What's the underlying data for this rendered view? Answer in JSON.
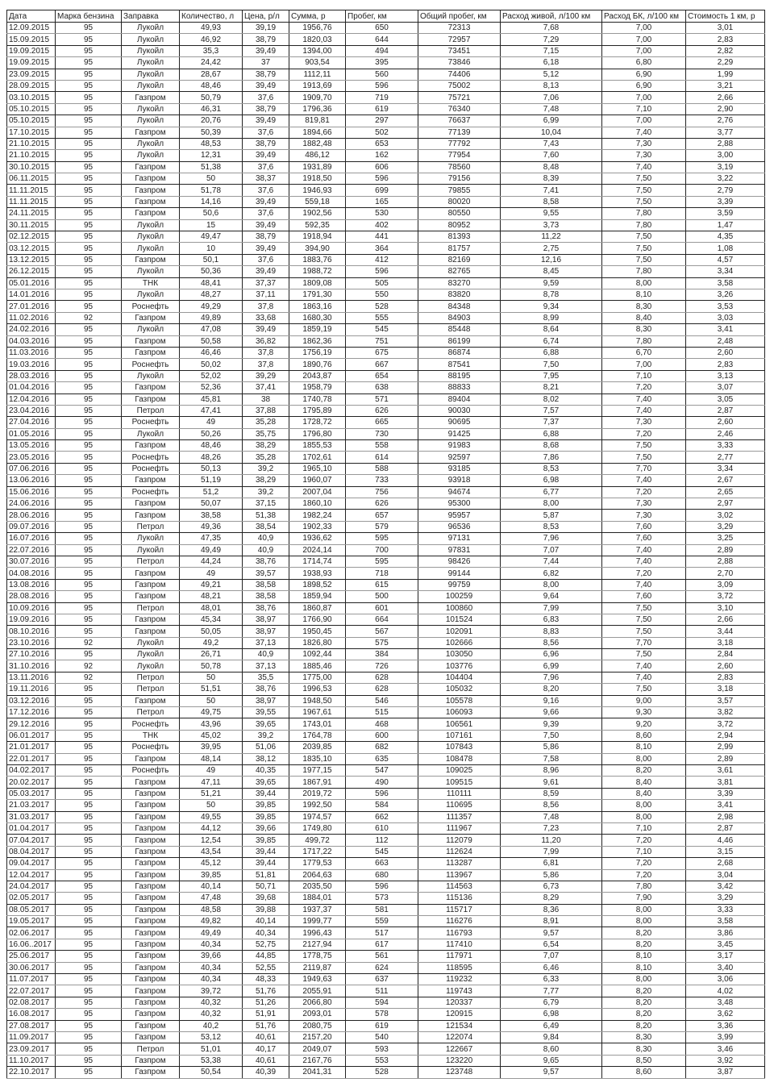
{
  "headers": [
    "Дата",
    "Марка бензина",
    "Заправка",
    "Количество, л",
    "Цена, р/л",
    "Сумма, р",
    "Пробег, км",
    "Общий пробег, км",
    "Расход живой, л/100 км",
    "Расход БК, л/100 км",
    "Стоимость 1 км, р"
  ],
  "rows": [
    [
      "12.09.2015",
      "95",
      "Лукойл",
      "49,93",
      "39,19",
      "1956,76",
      "650",
      "72313",
      "7,68",
      "7,00",
      "3,01"
    ],
    [
      "15.09.2015",
      "95",
      "Лукойл",
      "46,92",
      "38,79",
      "1820,03",
      "644",
      "72957",
      "7,29",
      "7,00",
      "2,83"
    ],
    [
      "19.09.2015",
      "95",
      "Лукойл",
      "35,3",
      "39,49",
      "1394,00",
      "494",
      "73451",
      "7,15",
      "7,00",
      "2,82"
    ],
    [
      "19.09.2015",
      "95",
      "Лукойл",
      "24,42",
      "37",
      "903,54",
      "395",
      "73846",
      "6,18",
      "6,80",
      "2,29"
    ],
    [
      "23.09.2015",
      "95",
      "Лукойл",
      "28,67",
      "38,79",
      "1112,11",
      "560",
      "74406",
      "5,12",
      "6,90",
      "1,99"
    ],
    [
      "28.09.2015",
      "95",
      "Лукойл",
      "48,46",
      "39,49",
      "1913,69",
      "596",
      "75002",
      "8,13",
      "6,90",
      "3,21"
    ],
    [
      "03.10.2015",
      "95",
      "Газпром",
      "50,79",
      "37,6",
      "1909,70",
      "719",
      "75721",
      "7,06",
      "7,00",
      "2,66"
    ],
    [
      "05.10.2015",
      "95",
      "Лукойл",
      "46,31",
      "38,79",
      "1796,36",
      "619",
      "76340",
      "7,48",
      "7,10",
      "2,90"
    ],
    [
      "05.10.2015",
      "95",
      "Лукойл",
      "20,76",
      "39,49",
      "819,81",
      "297",
      "76637",
      "6,99",
      "7,00",
      "2,76"
    ],
    [
      "17.10.2015",
      "95",
      "Газпром",
      "50,39",
      "37,6",
      "1894,66",
      "502",
      "77139",
      "10,04",
      "7,40",
      "3,77"
    ],
    [
      "21.10.2015",
      "95",
      "Лукойл",
      "48,53",
      "38,79",
      "1882,48",
      "653",
      "77792",
      "7,43",
      "7,30",
      "2,88"
    ],
    [
      "21.10.2015",
      "95",
      "Лукойл",
      "12,31",
      "39,49",
      "486,12",
      "162",
      "77954",
      "7,60",
      "7,30",
      "3,00"
    ],
    [
      "30.10.2015",
      "95",
      "Газпром",
      "51,38",
      "37,6",
      "1931,89",
      "606",
      "78560",
      "8,48",
      "7,40",
      "3,19"
    ],
    [
      "06.11.2015",
      "95",
      "Газпром",
      "50",
      "38,37",
      "1918,50",
      "596",
      "79156",
      "8,39",
      "7,50",
      "3,22"
    ],
    [
      "11.11.2015",
      "95",
      "Газпром",
      "51,78",
      "37,6",
      "1946,93",
      "699",
      "79855",
      "7,41",
      "7,50",
      "2,79"
    ],
    [
      "11.11.2015",
      "95",
      "Газпром",
      "14,16",
      "39,49",
      "559,18",
      "165",
      "80020",
      "8,58",
      "7,50",
      "3,39"
    ],
    [
      "24.11.2015",
      "95",
      "Газпром",
      "50,6",
      "37,6",
      "1902,56",
      "530",
      "80550",
      "9,55",
      "7,80",
      "3,59"
    ],
    [
      "30.11.2015",
      "95",
      "Лукойл",
      "15",
      "39,49",
      "592,35",
      "402",
      "80952",
      "3,73",
      "7,80",
      "1,47"
    ],
    [
      "02.12.2015",
      "95",
      "Лукойл",
      "49,47",
      "38,79",
      "1918,94",
      "441",
      "81393",
      "11,22",
      "7,50",
      "4,35"
    ],
    [
      "03.12.2015",
      "95",
      "Лукойл",
      "10",
      "39,49",
      "394,90",
      "364",
      "81757",
      "2,75",
      "7,50",
      "1,08"
    ],
    [
      "13.12.2015",
      "95",
      "Газпром",
      "50,1",
      "37,6",
      "1883,76",
      "412",
      "82169",
      "12,16",
      "7,50",
      "4,57"
    ],
    [
      "26.12.2015",
      "95",
      "Лукойл",
      "50,36",
      "39,49",
      "1988,72",
      "596",
      "82765",
      "8,45",
      "7,80",
      "3,34"
    ],
    [
      "05.01.2016",
      "95",
      "ТНК",
      "48,41",
      "37,37",
      "1809,08",
      "505",
      "83270",
      "9,59",
      "8,00",
      "3,58"
    ],
    [
      "14.01.2016",
      "95",
      "Лукойл",
      "48,27",
      "37,11",
      "1791,30",
      "550",
      "83820",
      "8,78",
      "8,10",
      "3,26"
    ],
    [
      "27.01.2016",
      "95",
      "Роснефть",
      "49,29",
      "37,8",
      "1863,16",
      "528",
      "84348",
      "9,34",
      "8,30",
      "3,53"
    ],
    [
      "11.02.2016",
      "92",
      "Газпром",
      "49,89",
      "33,68",
      "1680,30",
      "555",
      "84903",
      "8,99",
      "8,40",
      "3,03"
    ],
    [
      "24.02.2016",
      "95",
      "Лукойл",
      "47,08",
      "39,49",
      "1859,19",
      "545",
      "85448",
      "8,64",
      "8,30",
      "3,41"
    ],
    [
      "04.03.2016",
      "95",
      "Газпром",
      "50,58",
      "36,82",
      "1862,36",
      "751",
      "86199",
      "6,74",
      "7,80",
      "2,48"
    ],
    [
      "11.03.2016",
      "95",
      "Газпром",
      "46,46",
      "37,8",
      "1756,19",
      "675",
      "86874",
      "6,88",
      "6,70",
      "2,60"
    ],
    [
      "19.03.2016",
      "95",
      "Роснефть",
      "50,02",
      "37,8",
      "1890,76",
      "667",
      "87541",
      "7,50",
      "7,00",
      "2,83"
    ],
    [
      "28.03.2016",
      "95",
      "Лукойл",
      "52,02",
      "39,29",
      "2043,87",
      "654",
      "88195",
      "7,95",
      "7,10",
      "3,13"
    ],
    [
      "01.04.2016",
      "95",
      "Газпром",
      "52,36",
      "37,41",
      "1958,79",
      "638",
      "88833",
      "8,21",
      "7,20",
      "3,07"
    ],
    [
      "12.04.2016",
      "95",
      "Газпром",
      "45,81",
      "38",
      "1740,78",
      "571",
      "89404",
      "8,02",
      "7,40",
      "3,05"
    ],
    [
      "23.04.2016",
      "95",
      "Петрол",
      "47,41",
      "37,88",
      "1795,89",
      "626",
      "90030",
      "7,57",
      "7,40",
      "2,87"
    ],
    [
      "27.04.2016",
      "95",
      "Роснефть",
      "49",
      "35,28",
      "1728,72",
      "665",
      "90695",
      "7,37",
      "7,30",
      "2,60"
    ],
    [
      "01.05.2016",
      "95",
      "Лукойл",
      "50,26",
      "35,75",
      "1796,80",
      "730",
      "91425",
      "6,88",
      "7,20",
      "2,46"
    ],
    [
      "13.05.2016",
      "95",
      "Газпром",
      "48,46",
      "38,29",
      "1855,53",
      "558",
      "91983",
      "8,68",
      "7,50",
      "3,33"
    ],
    [
      "23.05.2016",
      "95",
      "Роснефть",
      "48,26",
      "35,28",
      "1702,61",
      "614",
      "92597",
      "7,86",
      "7,50",
      "2,77"
    ],
    [
      "07.06.2016",
      "95",
      "Роснефть",
      "50,13",
      "39,2",
      "1965,10",
      "588",
      "93185",
      "8,53",
      "7,70",
      "3,34"
    ],
    [
      "13.06.2016",
      "95",
      "Газпром",
      "51,19",
      "38,29",
      "1960,07",
      "733",
      "93918",
      "6,98",
      "7,40",
      "2,67"
    ],
    [
      "15.06.2016",
      "95",
      "Роснефть",
      "51,2",
      "39,2",
      "2007,04",
      "756",
      "94674",
      "6,77",
      "7,20",
      "2,65"
    ],
    [
      "24.06.2016",
      "95",
      "Газпром",
      "50,07",
      "37,15",
      "1860,10",
      "626",
      "95300",
      "8,00",
      "7,30",
      "2,97"
    ],
    [
      "28.06.2016",
      "95",
      "Газпром",
      "38,58",
      "51,38",
      "1982,24",
      "657",
      "95957",
      "5,87",
      "7,30",
      "3,02"
    ],
    [
      "09.07.2016",
      "95",
      "Петрол",
      "49,36",
      "38,54",
      "1902,33",
      "579",
      "96536",
      "8,53",
      "7,60",
      "3,29"
    ],
    [
      "16.07.2016",
      "95",
      "Лукойл",
      "47,35",
      "40,9",
      "1936,62",
      "595",
      "97131",
      "7,96",
      "7,60",
      "3,25"
    ],
    [
      "22.07.2016",
      "95",
      "Лукойл",
      "49,49",
      "40,9",
      "2024,14",
      "700",
      "97831",
      "7,07",
      "7,40",
      "2,89"
    ],
    [
      "30.07.2016",
      "95",
      "Петрол",
      "44,24",
      "38,76",
      "1714,74",
      "595",
      "98426",
      "7,44",
      "7,40",
      "2,88"
    ],
    [
      "04.08.2016",
      "95",
      "Газпром",
      "49",
      "39,57",
      "1938,93",
      "718",
      "99144",
      "6,82",
      "7,20",
      "2,70"
    ],
    [
      "13.08.2016",
      "95",
      "Газпром",
      "49,21",
      "38,58",
      "1898,52",
      "615",
      "99759",
      "8,00",
      "7,40",
      "3,09"
    ],
    [
      "28.08.2016",
      "95",
      "Газпром",
      "48,21",
      "38,58",
      "1859,94",
      "500",
      "100259",
      "9,64",
      "7,60",
      "3,72"
    ],
    [
      "10.09.2016",
      "95",
      "Петрол",
      "48,01",
      "38,76",
      "1860,87",
      "601",
      "100860",
      "7,99",
      "7,50",
      "3,10"
    ],
    [
      "19.09.2016",
      "95",
      "Газпром",
      "45,34",
      "38,97",
      "1766,90",
      "664",
      "101524",
      "6,83",
      "7,50",
      "2,66"
    ],
    [
      "08.10.2016",
      "95",
      "Газпром",
      "50,05",
      "38,97",
      "1950,45",
      "567",
      "102091",
      "8,83",
      "7,50",
      "3,44"
    ],
    [
      "23.10.2016",
      "92",
      "Лукойл",
      "49,2",
      "37,13",
      "1826,80",
      "575",
      "102666",
      "8,56",
      "7,70",
      "3,18"
    ],
    [
      "27.10.2016",
      "95",
      "Лукойл",
      "26,71",
      "40,9",
      "1092,44",
      "384",
      "103050",
      "6,96",
      "7,50",
      "2,84"
    ],
    [
      "31.10.2016",
      "92",
      "Лукойл",
      "50,78",
      "37,13",
      "1885,46",
      "726",
      "103776",
      "6,99",
      "7,40",
      "2,60"
    ],
    [
      "13.11.2016",
      "92",
      "Петрол",
      "50",
      "35,5",
      "1775,00",
      "628",
      "104404",
      "7,96",
      "7,40",
      "2,83"
    ],
    [
      "19.11.2016",
      "95",
      "Петрол",
      "51,51",
      "38,76",
      "1996,53",
      "628",
      "105032",
      "8,20",
      "7,50",
      "3,18"
    ],
    [
      "03.12.2016",
      "95",
      "Газпром",
      "50",
      "38,97",
      "1948,50",
      "546",
      "105578",
      "9,16",
      "9,00",
      "3,57"
    ],
    [
      "17.12.2016",
      "95",
      "Петрол",
      "49,75",
      "39,55",
      "1967,61",
      "515",
      "106093",
      "9,66",
      "9,30",
      "3,82"
    ],
    [
      "29.12.2016",
      "95",
      "Роснефть",
      "43,96",
      "39,65",
      "1743,01",
      "468",
      "106561",
      "9,39",
      "9,20",
      "3,72"
    ],
    [
      "06.01.2017",
      "95",
      "ТНК",
      "45,02",
      "39,2",
      "1764,78",
      "600",
      "107161",
      "7,50",
      "8,60",
      "2,94"
    ],
    [
      "21.01.2017",
      "95",
      "Роснефть",
      "39,95",
      "51,06",
      "2039,85",
      "682",
      "107843",
      "5,86",
      "8,10",
      "2,99"
    ],
    [
      "22.01.2017",
      "95",
      "Газпром",
      "48,14",
      "38,12",
      "1835,10",
      "635",
      "108478",
      "7,58",
      "8,00",
      "2,89"
    ],
    [
      "04.02.2017",
      "95",
      "Роснефть",
      "49",
      "40,35",
      "1977,15",
      "547",
      "109025",
      "8,96",
      "8,20",
      "3,61"
    ],
    [
      "20.02.2017",
      "95",
      "Газпром",
      "47,11",
      "39,65",
      "1867,91",
      "490",
      "109515",
      "9,61",
      "8,40",
      "3,81"
    ],
    [
      "05.03.2017",
      "95",
      "Газпром",
      "51,21",
      "39,44",
      "2019,72",
      "596",
      "110111",
      "8,59",
      "8,40",
      "3,39"
    ],
    [
      "21.03.2017",
      "95",
      "Газпром",
      "50",
      "39,85",
      "1992,50",
      "584",
      "110695",
      "8,56",
      "8,00",
      "3,41"
    ],
    [
      "31.03.2017",
      "95",
      "Газпром",
      "49,55",
      "39,85",
      "1974,57",
      "662",
      "111357",
      "7,48",
      "8,00",
      "2,98"
    ],
    [
      "01.04.2017",
      "95",
      "Газпром",
      "44,12",
      "39,66",
      "1749,80",
      "610",
      "111967",
      "7,23",
      "7,10",
      "2,87"
    ],
    [
      "07.04.2017",
      "95",
      "Газпром",
      "12,54",
      "39,85",
      "499,72",
      "112",
      "112079",
      "11,20",
      "7,20",
      "4,46"
    ],
    [
      "08.04.2017",
      "95",
      "Газпром",
      "43,54",
      "39,44",
      "1717,22",
      "545",
      "112624",
      "7,99",
      "7,10",
      "3,15"
    ],
    [
      "09.04.2017",
      "95",
      "Газпром",
      "45,12",
      "39,44",
      "1779,53",
      "663",
      "113287",
      "6,81",
      "7,20",
      "2,68"
    ],
    [
      "12.04.2017",
      "95",
      "Газпром",
      "39,85",
      "51,81",
      "2064,63",
      "680",
      "113967",
      "5,86",
      "7,20",
      "3,04"
    ],
    [
      "24.04.2017",
      "95",
      "Газпром",
      "40,14",
      "50,71",
      "2035,50",
      "596",
      "114563",
      "6,73",
      "7,80",
      "3,42"
    ],
    [
      "02.05.2017",
      "95",
      "Газпром",
      "47,48",
      "39,68",
      "1884,01",
      "573",
      "115136",
      "8,29",
      "7,90",
      "3,29"
    ],
    [
      "08.05.2017",
      "95",
      "Газпром",
      "48,58",
      "39,88",
      "1937,37",
      "581",
      "115717",
      "8,36",
      "8,00",
      "3,33"
    ],
    [
      "19.05.2017",
      "95",
      "Газпром",
      "49,82",
      "40,14",
      "1999,77",
      "559",
      "116276",
      "8,91",
      "8,00",
      "3,58"
    ],
    [
      "02.06.2017",
      "95",
      "Газпром",
      "49,49",
      "40,34",
      "1996,43",
      "517",
      "116793",
      "9,57",
      "8,20",
      "3,86"
    ],
    [
      "16.06..2017",
      "95",
      "Газпром",
      "40,34",
      "52,75",
      "2127,94",
      "617",
      "117410",
      "6,54",
      "8,20",
      "3,45"
    ],
    [
      "25.06.2017",
      "95",
      "Газпром",
      "39,66",
      "44,85",
      "1778,75",
      "561",
      "117971",
      "7,07",
      "8,10",
      "3,17"
    ],
    [
      "30.06.2017",
      "95",
      "Газпром",
      "40,34",
      "52,55",
      "2119,87",
      "624",
      "118595",
      "6,46",
      "8,10",
      "3,40"
    ],
    [
      "11.07.2017",
      "95",
      "Газпром",
      "40,34",
      "48,33",
      "1949,63",
      "637",
      "119232",
      "6,33",
      "8,00",
      "3,06"
    ],
    [
      "22.07.2017",
      "95",
      "Газпром",
      "39,72",
      "51,76",
      "2055,91",
      "511",
      "119743",
      "7,77",
      "8,20",
      "4,02"
    ],
    [
      "02.08.2017",
      "95",
      "Газпром",
      "40,32",
      "51,26",
      "2066,80",
      "594",
      "120337",
      "6,79",
      "8,20",
      "3,48"
    ],
    [
      "16.08.2017",
      "95",
      "Газпром",
      "40,32",
      "51,91",
      "2093,01",
      "578",
      "120915",
      "6,98",
      "8,20",
      "3,62"
    ],
    [
      "27.08.2017",
      "95",
      "Газпром",
      "40,2",
      "51,76",
      "2080,75",
      "619",
      "121534",
      "6,49",
      "8,20",
      "3,36"
    ],
    [
      "11.09.2017",
      "95",
      "Газпром",
      "53,12",
      "40,61",
      "2157,20",
      "540",
      "122074",
      "9,84",
      "8,30",
      "3,99"
    ],
    [
      "23.09.2017",
      "95",
      "Петрол",
      "51,01",
      "40,17",
      "2049,07",
      "593",
      "122667",
      "8,60",
      "8,30",
      "3,46"
    ],
    [
      "11.10.2017",
      "95",
      "Газпром",
      "53,38",
      "40,61",
      "2167,76",
      "553",
      "123220",
      "9,65",
      "8,50",
      "3,92"
    ],
    [
      "22.10.2017",
      "95",
      "Газпром",
      "50,54",
      "40,39",
      "2041,31",
      "528",
      "123748",
      "9,57",
      "8,60",
      "3,87"
    ]
  ]
}
